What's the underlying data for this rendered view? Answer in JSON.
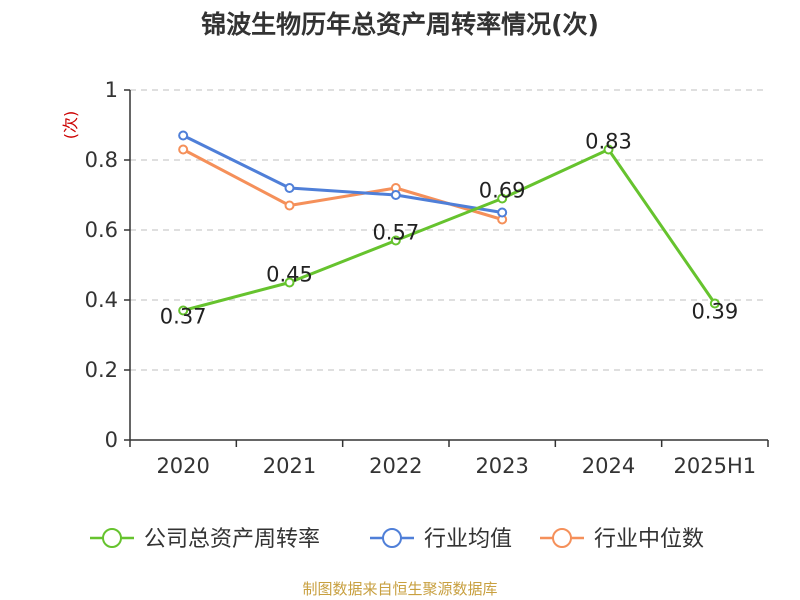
{
  "chart_data": {
    "type": "line",
    "title": "锦波生物历年总资产周转率情况(次)",
    "ylabel": "(次)",
    "xlabel": "",
    "categories": [
      "2020",
      "2021",
      "2022",
      "2023",
      "2024",
      "2025H1"
    ],
    "ylim": [
      0,
      1
    ],
    "yticks": [
      0,
      0.2,
      0.4,
      0.6,
      0.8,
      1
    ],
    "ytick_labels": [
      "0",
      "0.2",
      "0.4",
      "0.6",
      "0.8",
      "1"
    ],
    "grid": true,
    "legend_position": "bottom",
    "series": [
      {
        "name": "公司总资产周转率",
        "color": "#66c32e",
        "values": [
          0.37,
          0.45,
          0.57,
          0.69,
          0.83,
          0.39
        ],
        "labels": [
          "0.37",
          "0.45",
          "0.57",
          "0.69",
          "0.83",
          "0.39"
        ],
        "show_labels": true
      },
      {
        "name": "行业均值",
        "color": "#4f7fd8",
        "values": [
          0.87,
          0.72,
          0.7,
          0.65,
          null,
          null
        ],
        "show_labels": false
      },
      {
        "name": "行业中位数",
        "color": "#f5905a",
        "values": [
          0.83,
          0.67,
          0.72,
          0.63,
          null,
          null
        ],
        "show_labels": false
      }
    ],
    "source": "制图数据来自恒生聚源数据库"
  }
}
